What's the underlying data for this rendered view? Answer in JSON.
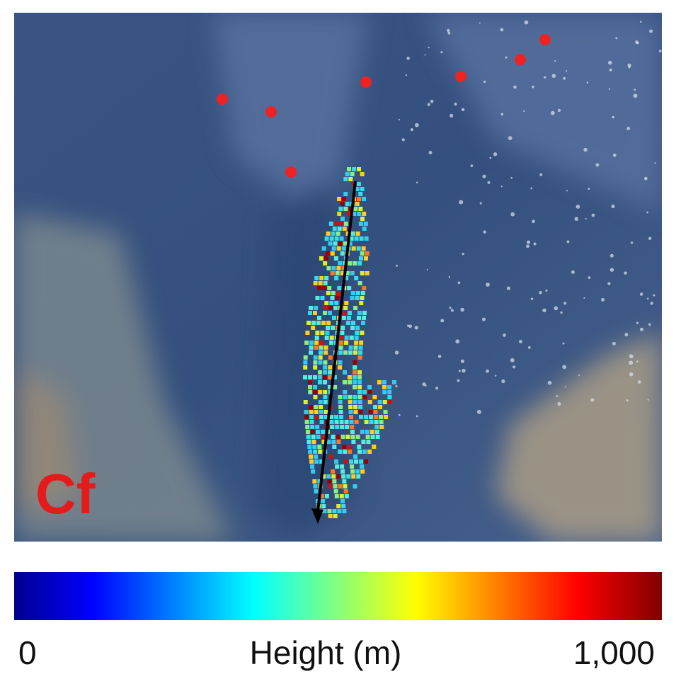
{
  "panel": {
    "label": "Cf"
  },
  "colorbar": {
    "min_label": "0",
    "title": "Height (m)",
    "max_label": "1,000"
  }
}
